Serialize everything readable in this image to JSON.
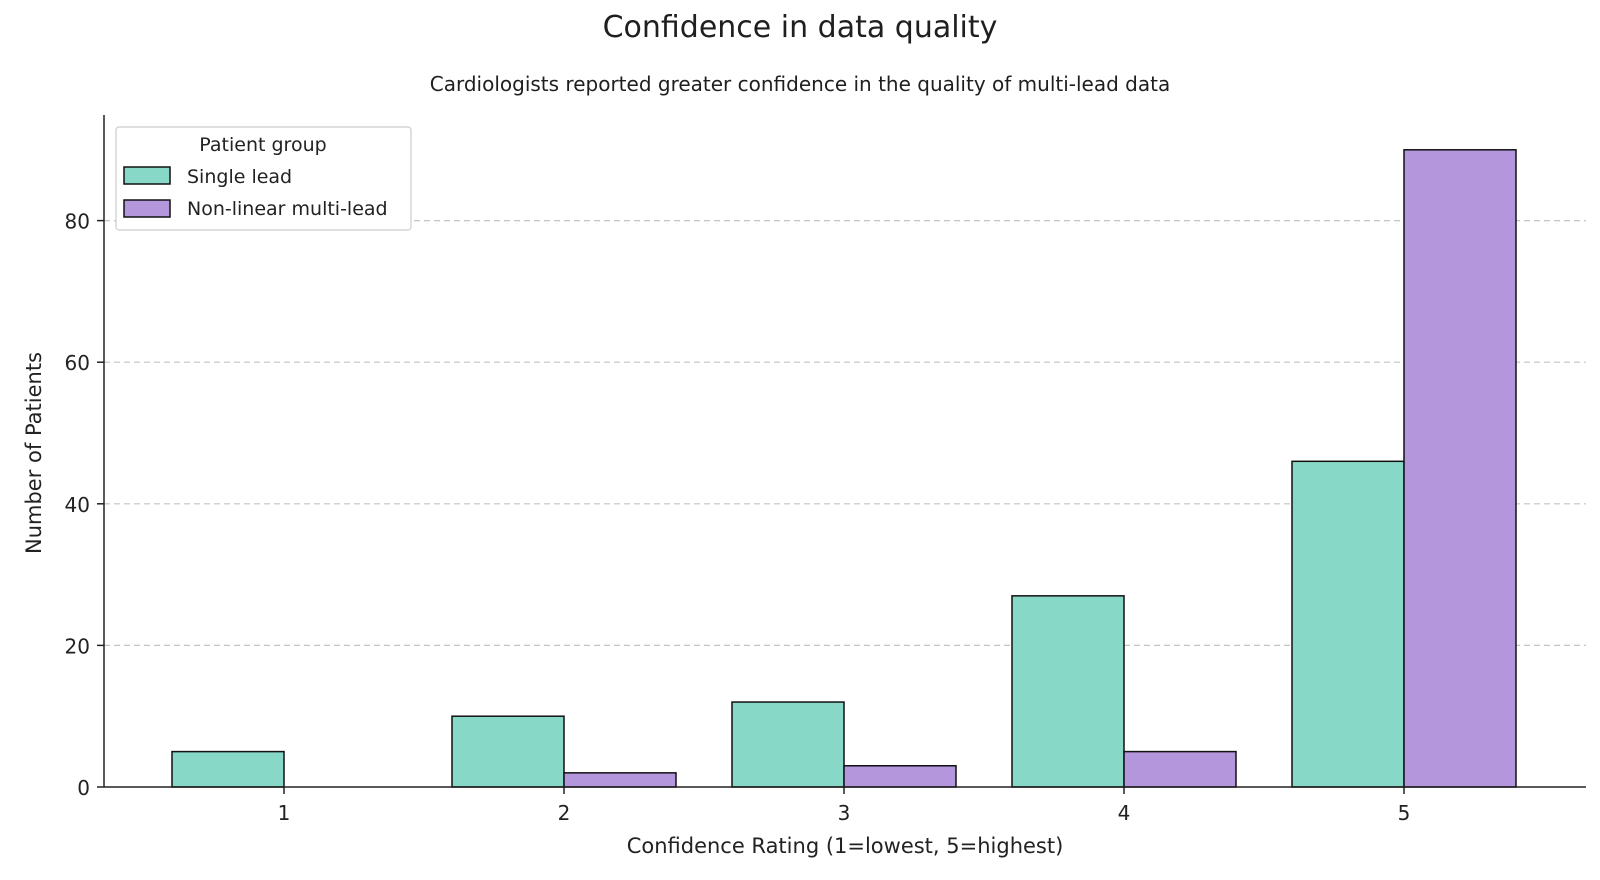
{
  "chart_data": {
    "type": "bar",
    "title": "Confidence in data quality",
    "subtitle": "Cardiologists reported greater confidence in the quality of multi-lead data",
    "xlabel": "Confidence Rating (1=lowest, 5=highest)",
    "ylabel": "Number of Patients",
    "categories": [
      "1",
      "2",
      "3",
      "4",
      "5"
    ],
    "series": [
      {
        "name": "Single lead",
        "values": [
          5,
          10,
          12,
          27,
          46
        ],
        "color": "#88d8c8"
      },
      {
        "name": "Non-linear multi-lead",
        "values": [
          0,
          2,
          3,
          5,
          90
        ],
        "color": "#b396dc"
      }
    ],
    "ylim": [
      0,
      95
    ],
    "yticks": [
      0,
      20,
      40,
      60,
      80
    ],
    "grid": "y-dashed",
    "legend": {
      "title": "Patient group",
      "placement": "top-left"
    }
  }
}
